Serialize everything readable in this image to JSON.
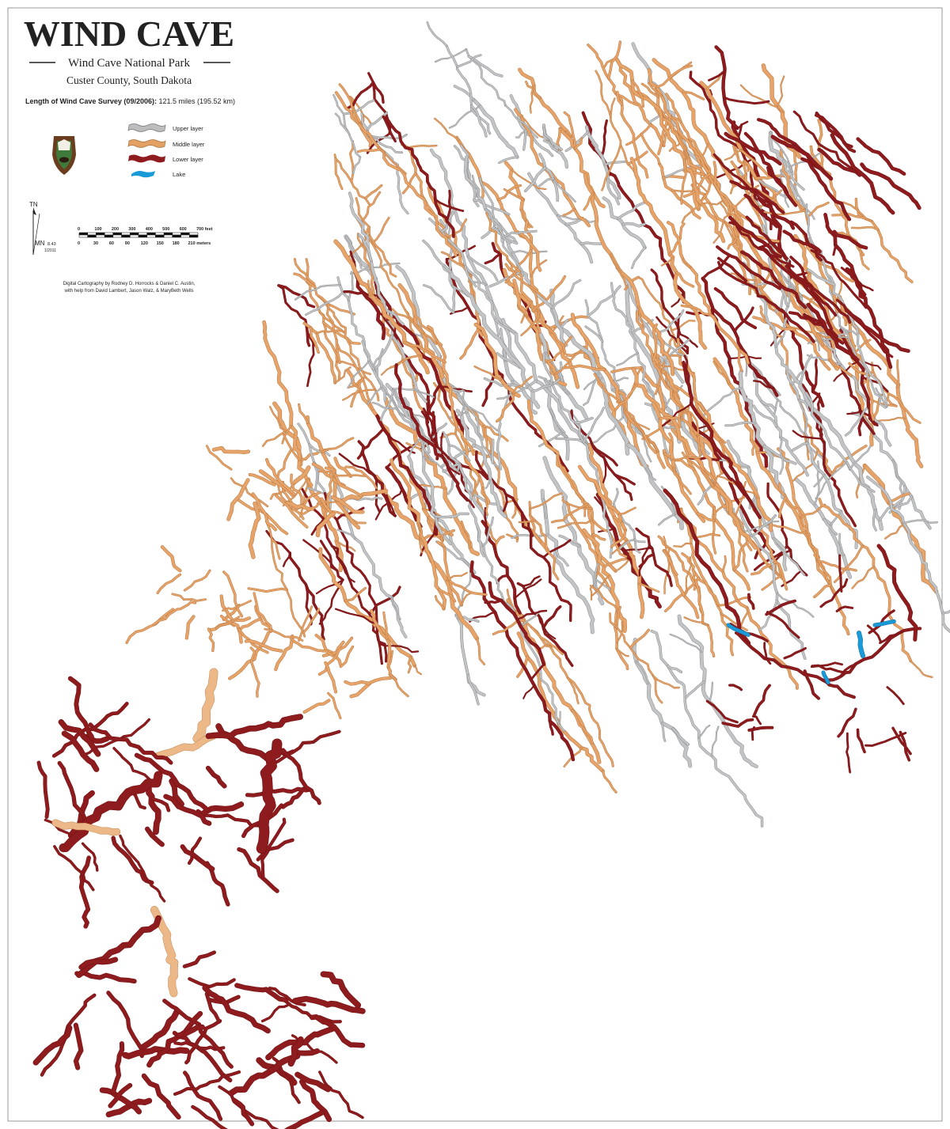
{
  "header": {
    "title": "WIND CAVE",
    "subtitle": "Wind Cave National Park",
    "location": "Custer County, South Dakota"
  },
  "survey": {
    "label": "Length of Wind Cave Survey (09/2006):",
    "value": "121.5 miles (195.52 km)"
  },
  "legend": {
    "items": [
      "Upper layer",
      "Middle layer",
      "Lower layer",
      "Lake"
    ]
  },
  "north": {
    "true_north": "TN",
    "magnetic_north": "MN",
    "declination": "8.43",
    "date": "1/2011"
  },
  "scale": {
    "feet": [
      "0",
      "100",
      "200",
      "300",
      "400",
      "500",
      "600",
      "700 feet"
    ],
    "meters": [
      "0",
      "30",
      "60",
      "90",
      "120",
      "150",
      "180",
      "210 meters"
    ]
  },
  "credits": [
    "Digital Cartography by Rodney D. Horrocks & Daniel C. Austin,",
    "with help from David Lambert, Jason Walz, & MaryBeth Wells"
  ]
}
